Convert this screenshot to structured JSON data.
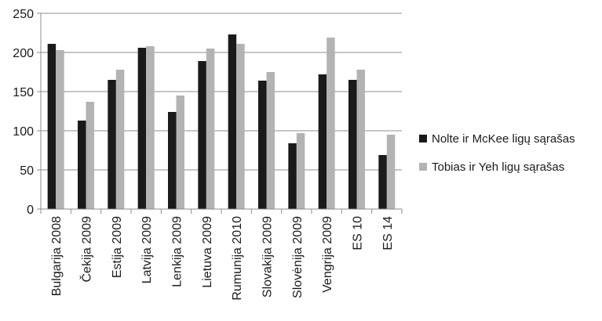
{
  "chart_data": {
    "type": "bar",
    "title": "",
    "xlabel": "",
    "ylabel": "",
    "ylim": [
      0,
      250
    ],
    "yticks": [
      0,
      50,
      100,
      150,
      200,
      250
    ],
    "grid": "horizontal",
    "legend_position": "right",
    "categories": [
      "Bulgarija 2008",
      "Čekija 2009",
      "Estija 2009",
      "Latvija 2009",
      "Lenkija 2009",
      "Lietuva 2009",
      "Rumunija 2010",
      "Slovakija 2009",
      "Slovėnija 2009",
      "Vengrija 2009",
      "ES 10",
      "ES 14"
    ],
    "series": [
      {
        "name": "Nolte ir McKee ligų sąrašas",
        "color": "#1a1a1a",
        "values": [
          211,
          113,
          165,
          206,
          124,
          189,
          223,
          164,
          84,
          172,
          165,
          69
        ]
      },
      {
        "name": "Tobias ir Yeh ligų sąrašas",
        "color": "#b3b3b3",
        "values": [
          203,
          137,
          178,
          208,
          145,
          205,
          211,
          175,
          97,
          219,
          178,
          95
        ]
      }
    ]
  }
}
